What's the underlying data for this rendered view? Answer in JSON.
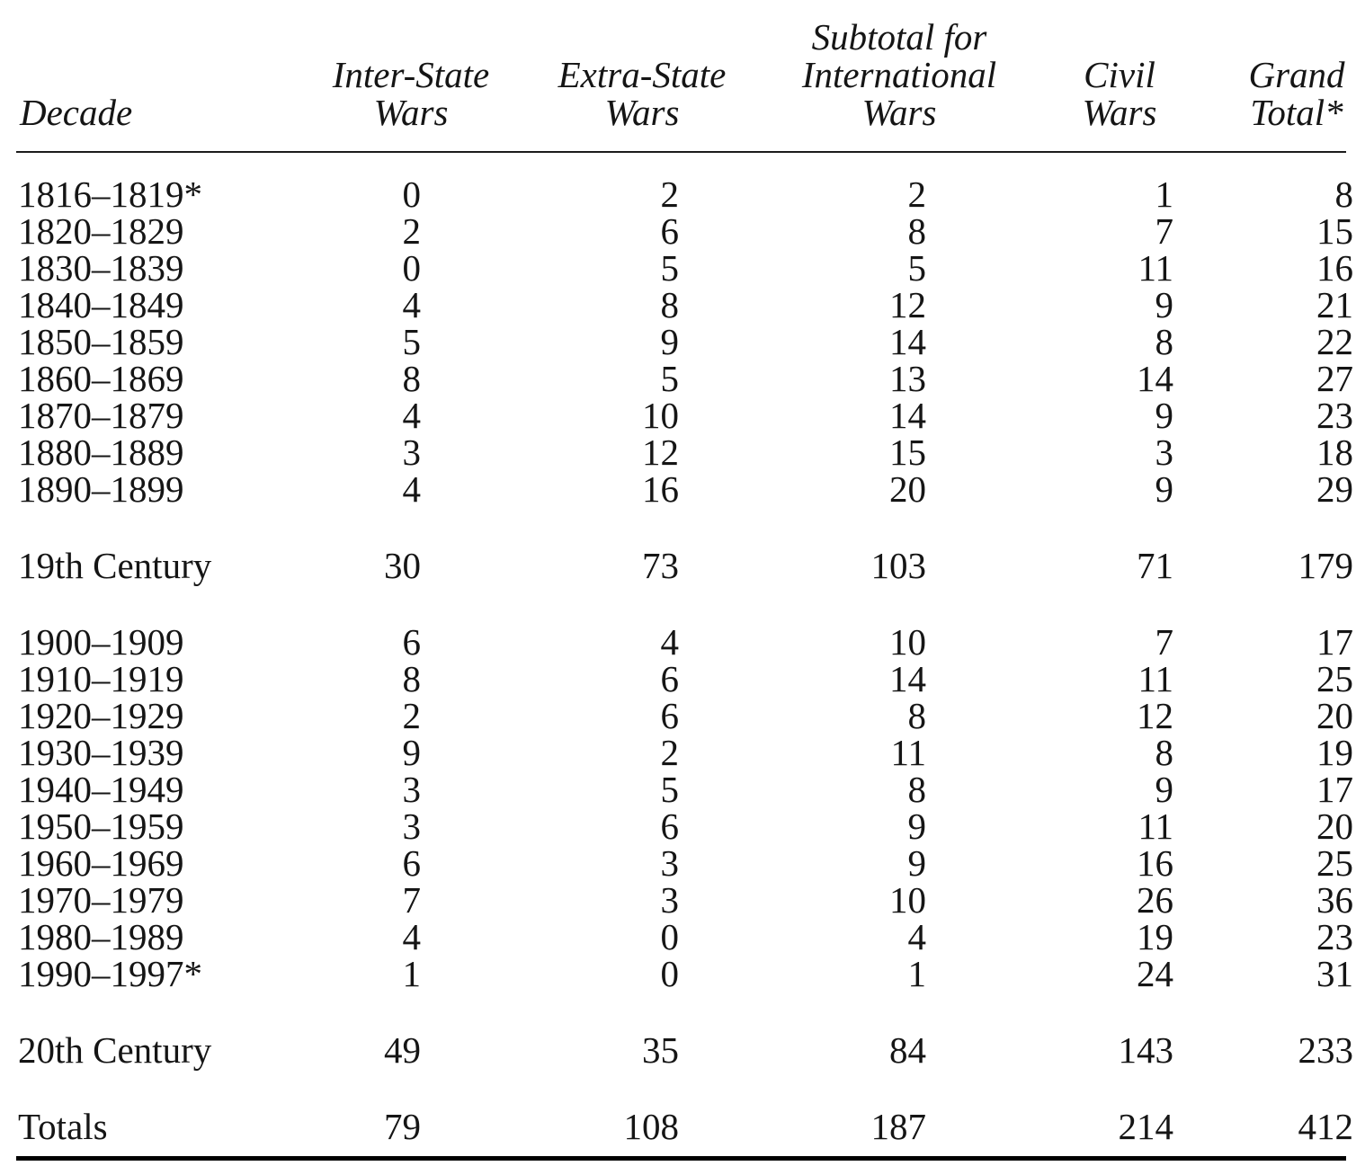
{
  "page": {
    "background_color": "#ffffff",
    "text_color": "#151515",
    "rule_color": "#000000"
  },
  "table": {
    "header": {
      "decade_label": "Decade",
      "col_headers": [
        {
          "lines": [
            "Inter-State",
            "Wars"
          ]
        },
        {
          "lines": [
            "Extra-State",
            "Wars"
          ]
        },
        {
          "lines": [
            "Subtotal for",
            "International",
            "Wars"
          ]
        },
        {
          "lines": [
            "Civil",
            "Wars"
          ]
        },
        {
          "lines": [
            "Grand",
            "Total*"
          ]
        }
      ]
    },
    "rows": [
      {
        "label": "1816–1819*",
        "kind": "data",
        "values": [
          0,
          2,
          2,
          1,
          8
        ]
      },
      {
        "label": "1820–1829",
        "kind": "data",
        "values": [
          2,
          6,
          8,
          7,
          15
        ]
      },
      {
        "label": "1830–1839",
        "kind": "data",
        "values": [
          0,
          5,
          5,
          11,
          16
        ]
      },
      {
        "label": "1840–1849",
        "kind": "data",
        "values": [
          4,
          8,
          12,
          9,
          21
        ]
      },
      {
        "label": "1850–1859",
        "kind": "data",
        "values": [
          5,
          9,
          14,
          8,
          22
        ]
      },
      {
        "label": "1860–1869",
        "kind": "data",
        "values": [
          8,
          5,
          13,
          14,
          27
        ]
      },
      {
        "label": "1870–1879",
        "kind": "data",
        "values": [
          4,
          10,
          14,
          9,
          23
        ]
      },
      {
        "label": "1880–1889",
        "kind": "data",
        "values": [
          3,
          12,
          15,
          3,
          18
        ]
      },
      {
        "label": "1890–1899",
        "kind": "data",
        "values": [
          4,
          16,
          20,
          9,
          29
        ]
      },
      {
        "label": "19th Century",
        "kind": "summary",
        "gap_before": true,
        "values": [
          30,
          73,
          103,
          71,
          179
        ]
      },
      {
        "label": "1900–1909",
        "kind": "data",
        "gap_before": true,
        "values": [
          6,
          4,
          10,
          7,
          17
        ]
      },
      {
        "label": "1910–1919",
        "kind": "data",
        "values": [
          8,
          6,
          14,
          11,
          25
        ]
      },
      {
        "label": "1920–1929",
        "kind": "data",
        "values": [
          2,
          6,
          8,
          12,
          20
        ]
      },
      {
        "label": "1930–1939",
        "kind": "data",
        "values": [
          9,
          2,
          11,
          8,
          19
        ]
      },
      {
        "label": "1940–1949",
        "kind": "data",
        "values": [
          3,
          5,
          8,
          9,
          17
        ]
      },
      {
        "label": "1950–1959",
        "kind": "data",
        "values": [
          3,
          6,
          9,
          11,
          20
        ]
      },
      {
        "label": "1960–1969",
        "kind": "data",
        "values": [
          6,
          3,
          9,
          16,
          25
        ]
      },
      {
        "label": "1970–1979",
        "kind": "data",
        "values": [
          7,
          3,
          10,
          26,
          36
        ]
      },
      {
        "label": "1980–1989",
        "kind": "data",
        "values": [
          4,
          0,
          4,
          19,
          23
        ]
      },
      {
        "label": "1990–1997*",
        "kind": "data",
        "values": [
          1,
          0,
          1,
          24,
          31
        ]
      },
      {
        "label": "20th Century",
        "kind": "summary",
        "gap_before": true,
        "values": [
          49,
          35,
          84,
          143,
          233
        ]
      },
      {
        "label": "Totals",
        "kind": "summary",
        "gap_before": true,
        "values": [
          79,
          108,
          187,
          214,
          412
        ]
      }
    ]
  }
}
